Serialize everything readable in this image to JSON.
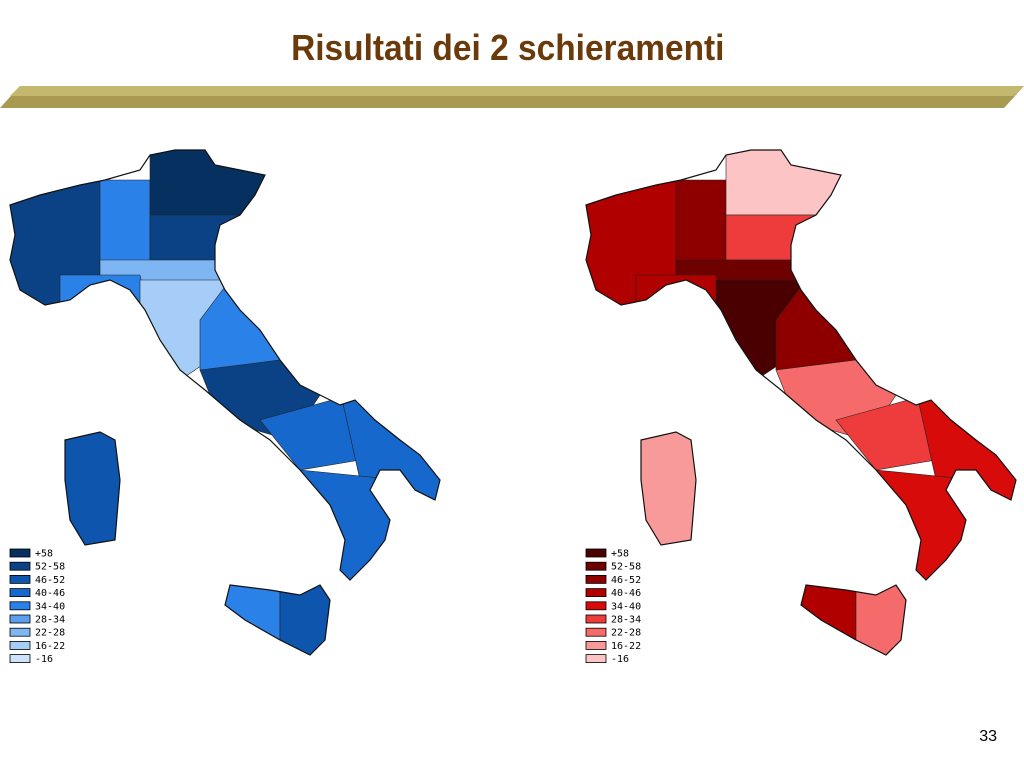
{
  "title": "Risultati dei 2 schieramenti",
  "maps": [
    {
      "legend": [
        {
          "label": "+58",
          "color": "#05305f"
        },
        {
          "label": "52-58",
          "color": "#0a4285"
        },
        {
          "label": "46-52",
          "color": "#0d55ad"
        },
        {
          "label": "40-46",
          "color": "#1668cc"
        },
        {
          "label": "34-40",
          "color": "#2a82e8"
        },
        {
          "label": "28-34",
          "color": "#5aa0ef"
        },
        {
          "label": "22-28",
          "color": "#7db6f2"
        },
        {
          "label": "16-22",
          "color": "#a6cdf7"
        },
        {
          "label": "-16",
          "color": "#cde3fb"
        }
      ]
    },
    {
      "legend": [
        {
          "label": "+58",
          "color": "#4a0000"
        },
        {
          "label": "52-58",
          "color": "#6e0000"
        },
        {
          "label": "46-52",
          "color": "#8e0000"
        },
        {
          "label": "40-46",
          "color": "#b00000"
        },
        {
          "label": "34-40",
          "color": "#d80b0b"
        },
        {
          "label": "28-34",
          "color": "#ee3b3b"
        },
        {
          "label": "22-28",
          "color": "#f56a6a"
        },
        {
          "label": "16-22",
          "color": "#f99a9a"
        },
        {
          "label": "-16",
          "color": "#fcc4c4"
        }
      ]
    }
  ],
  "page_number": "33"
}
